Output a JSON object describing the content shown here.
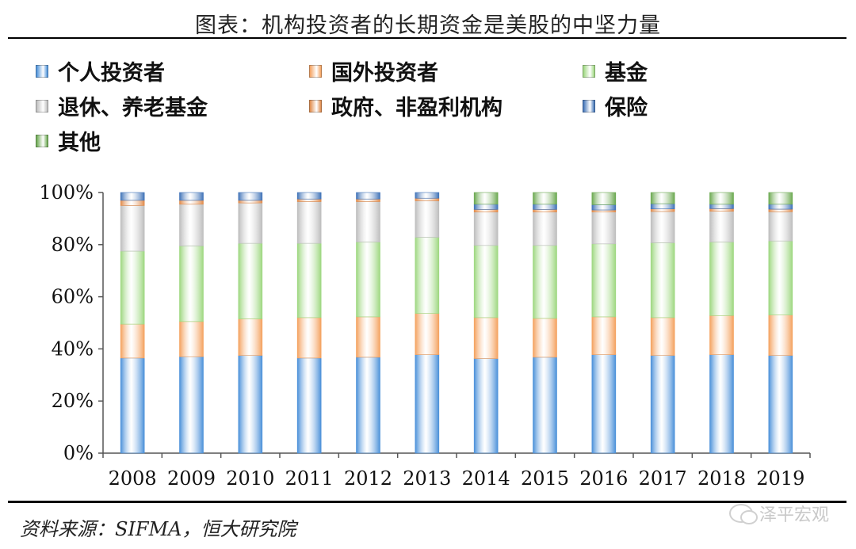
{
  "title": "图表：机构投资者的长期资金是美股的中坚力量",
  "source": "资料来源：SIFMA，恒大研究院",
  "watermark": "泽平宏观",
  "chart_data": {
    "type": "bar",
    "stacked": true,
    "percent": true,
    "categories": [
      "2008",
      "2009",
      "2010",
      "2011",
      "2012",
      "2013",
      "2014",
      "2015",
      "2016",
      "2017",
      "2018",
      "2019"
    ],
    "ylim": [
      0,
      100
    ],
    "yticks": [
      "0%",
      "20%",
      "40%",
      "60%",
      "80%",
      "100%"
    ],
    "series": [
      {
        "name": "个人投资者",
        "color": "#4a90d9",
        "values": [
          36.5,
          37.0,
          37.5,
          36.5,
          36.8,
          37.8,
          36.3,
          36.8,
          37.8,
          37.5,
          37.8,
          37.5
        ]
      },
      {
        "name": "国外投资者",
        "color": "#f4a15e",
        "values": [
          13.0,
          13.5,
          14.0,
          15.5,
          15.5,
          15.8,
          15.7,
          14.9,
          14.5,
          14.5,
          15.0,
          15.5
        ]
      },
      {
        "name": "基金",
        "color": "#9dd77f",
        "values": [
          28.0,
          29.0,
          29.0,
          28.5,
          28.7,
          29.2,
          27.7,
          28.0,
          28.0,
          28.7,
          28.2,
          28.4
        ]
      },
      {
        "name": "退休、养老基金",
        "color": "#bdbdbd",
        "values": [
          17.5,
          16.0,
          15.5,
          16.0,
          15.5,
          14.0,
          12.8,
          12.8,
          12.2,
          12.0,
          11.8,
          11.2
        ]
      },
      {
        "name": "政府、非盈利机构",
        "color": "#e08a4a",
        "values": [
          2.0,
          1.5,
          1.0,
          1.0,
          1.0,
          1.0,
          1.0,
          1.0,
          0.8,
          1.0,
          1.0,
          1.0
        ]
      },
      {
        "name": "保险",
        "color": "#3f72b7",
        "values": [
          3.0,
          3.0,
          3.0,
          2.5,
          2.5,
          2.2,
          2.0,
          2.0,
          2.0,
          2.0,
          1.7,
          1.9
        ]
      },
      {
        "name": "其他",
        "color": "#6aa84f",
        "values": [
          0,
          0,
          0,
          0,
          0,
          0,
          4.5,
          4.5,
          4.7,
          4.3,
          4.5,
          4.5
        ]
      }
    ]
  }
}
